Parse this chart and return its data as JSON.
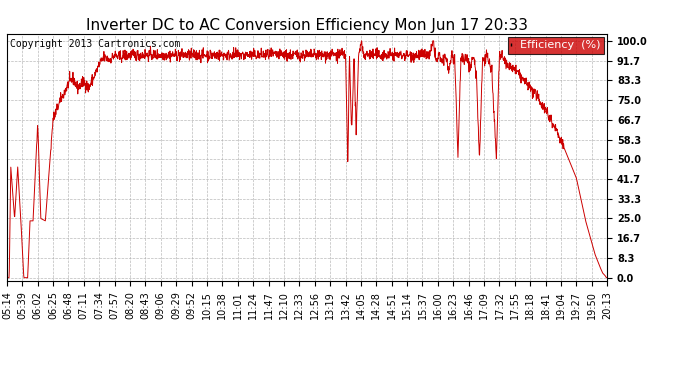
{
  "title": "Inverter DC to AC Conversion Efficiency Mon Jun 17 20:33",
  "copyright": "Copyright 2013 Cartronics.com",
  "legend_label": "Efficiency  (%)",
  "legend_bg": "#cc0000",
  "legend_fg": "#ffffff",
  "line_color": "#cc0000",
  "bg_color": "#ffffff",
  "plot_bg": "#ffffff",
  "grid_color": "#aaaaaa",
  "yticks": [
    0.0,
    8.3,
    16.7,
    25.0,
    33.3,
    41.7,
    50.0,
    58.3,
    66.7,
    75.0,
    83.3,
    91.7,
    100.0
  ],
  "xtick_labels": [
    "05:14",
    "05:39",
    "06:02",
    "06:25",
    "06:48",
    "07:11",
    "07:34",
    "07:57",
    "08:20",
    "08:43",
    "09:06",
    "09:29",
    "09:52",
    "10:15",
    "10:38",
    "11:01",
    "11:24",
    "11:47",
    "12:10",
    "12:33",
    "12:56",
    "13:19",
    "13:42",
    "14:05",
    "14:28",
    "14:51",
    "15:14",
    "15:37",
    "16:00",
    "16:23",
    "16:46",
    "17:09",
    "17:32",
    "17:55",
    "18:18",
    "18:41",
    "19:04",
    "19:27",
    "19:50",
    "20:13"
  ],
  "ylim": [
    -1.5,
    103
  ],
  "title_fontsize": 11,
  "axis_fontsize": 7,
  "copyright_fontsize": 7,
  "key_x": [
    0,
    0.15,
    0.25,
    0.5,
    0.7,
    0.9,
    1.1,
    1.35,
    1.5,
    1.7,
    2.0,
    2.2,
    2.5,
    3.0,
    3.5,
    4.0,
    4.3,
    4.6,
    5.0,
    5.3,
    5.6,
    6.0,
    6.3,
    6.7,
    7.0,
    7.3,
    7.7,
    8.0,
    22.0,
    22.15,
    22.25,
    22.4,
    22.55,
    22.7,
    22.85,
    23.0,
    23.2,
    23.5,
    24.0,
    27.5,
    27.7,
    27.9,
    28.1,
    28.3,
    28.5,
    28.7,
    28.9,
    29.1,
    29.3,
    29.5,
    29.7,
    29.9,
    30.1,
    30.3,
    30.5,
    30.7,
    30.9,
    31.2,
    31.5,
    31.8,
    32.0,
    32.3,
    32.6,
    33.0,
    33.5,
    34.0,
    34.5,
    35.0,
    35.5,
    36.0,
    36.5,
    37.0,
    37.3,
    37.6,
    37.9,
    38.2,
    38.5,
    38.7,
    38.85,
    38.95,
    39.0
  ],
  "key_y": [
    0,
    0,
    47,
    25,
    47,
    25,
    0,
    0,
    24,
    24,
    66,
    25,
    24,
    67,
    75,
    82,
    84,
    80,
    83,
    80,
    84,
    90,
    93,
    92,
    94,
    93,
    94,
    94,
    94,
    47,
    94,
    62,
    94,
    60,
    94,
    100,
    94,
    94,
    94,
    94,
    100,
    91,
    94,
    90,
    94,
    87,
    94,
    91,
    50,
    94,
    91,
    94,
    88,
    94,
    86,
    50,
    92,
    94,
    87,
    50,
    94,
    92,
    89,
    88,
    84,
    80,
    76,
    71,
    65,
    58,
    50,
    42,
    33,
    24,
    17,
    10,
    5,
    2,
    1,
    0,
    0
  ]
}
